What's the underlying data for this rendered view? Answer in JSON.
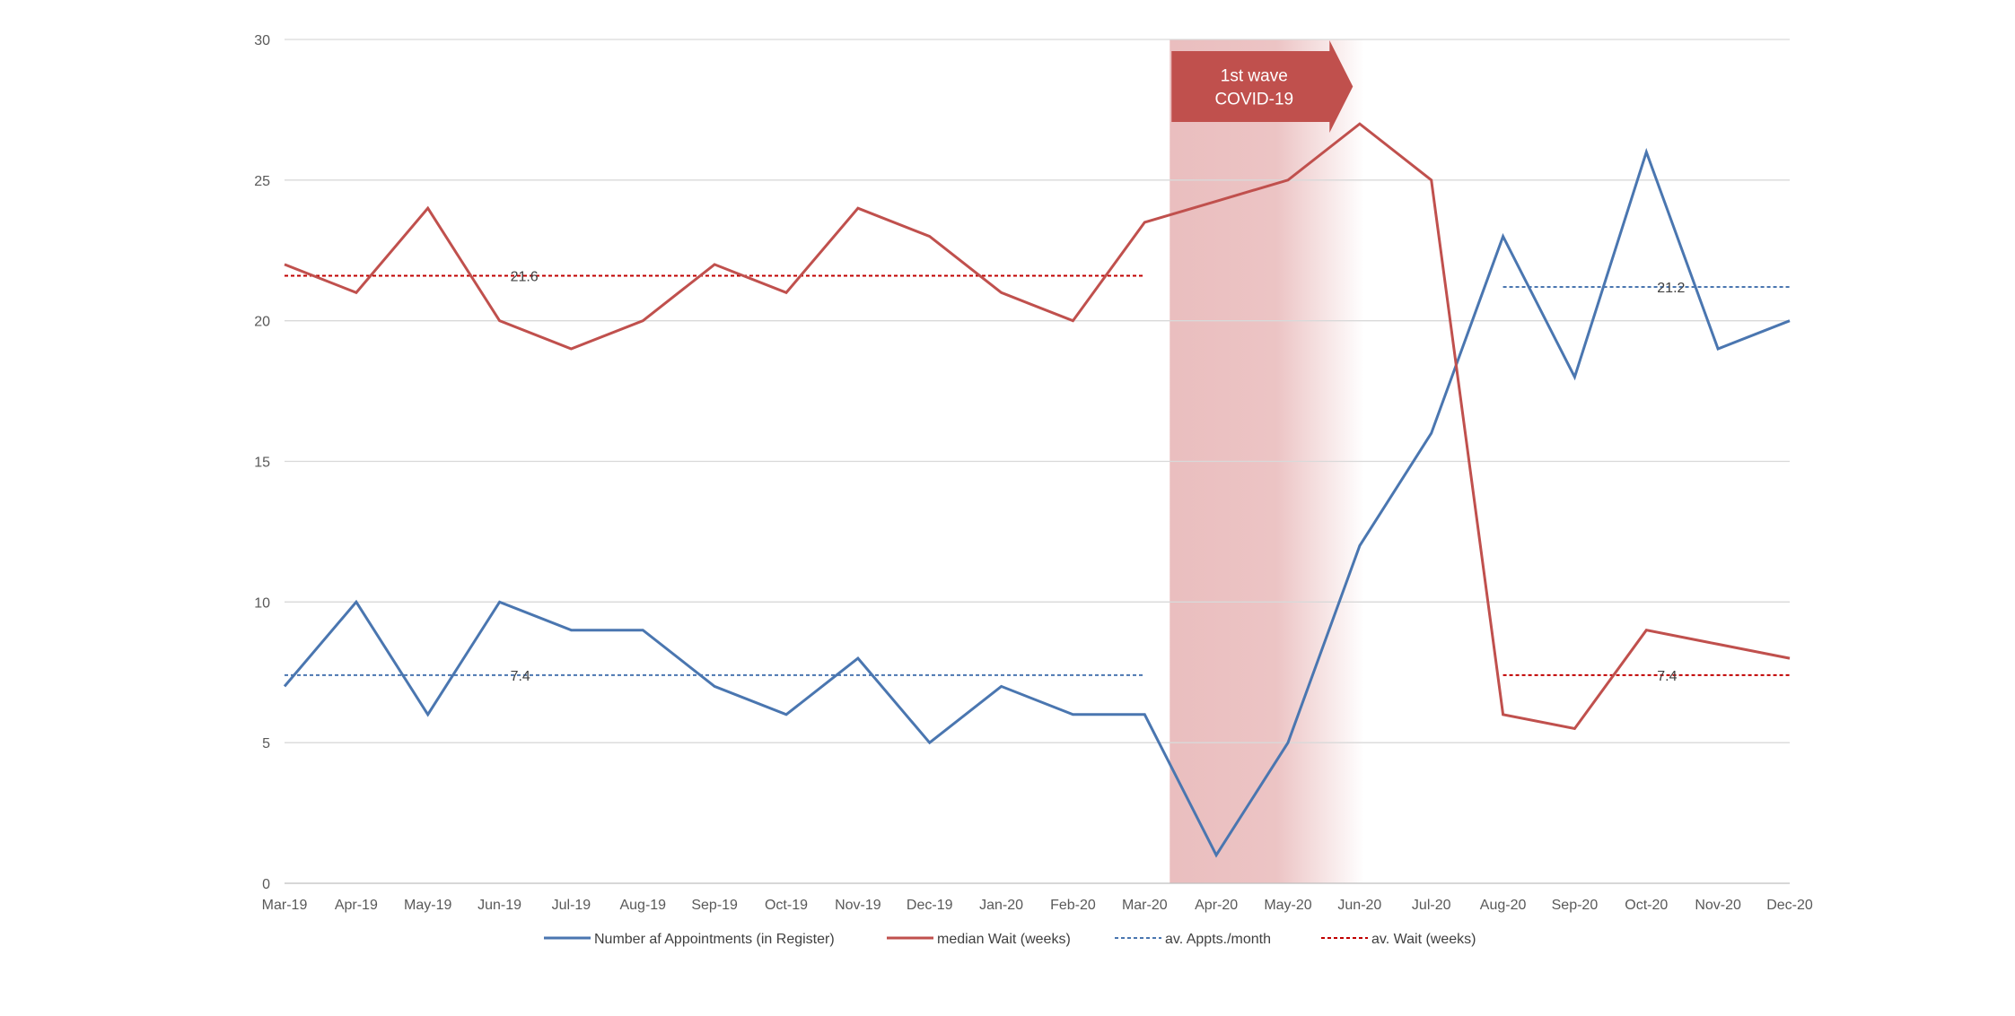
{
  "chart_data": {
    "type": "line",
    "categories": [
      "Mar-19",
      "Apr-19",
      "May-19",
      "Jun-19",
      "Jul-19",
      "Aug-19",
      "Sep-19",
      "Oct-19",
      "Nov-19",
      "Dec-19",
      "Jan-20",
      "Feb-20",
      "Mar-20",
      "Apr-20",
      "May-20",
      "Jun-20",
      "Jul-20",
      "Aug-20",
      "Sep-20",
      "Oct-20",
      "Nov-20",
      "Dec-20"
    ],
    "ylim": [
      0,
      30
    ],
    "yticks": [
      0,
      5,
      10,
      15,
      20,
      25,
      30
    ],
    "grid": true,
    "legend_position": "bottom",
    "series": [
      {
        "name": "Number af Appointments (in Register)",
        "color": "#4a76b0",
        "style": "solid",
        "values": [
          7,
          10,
          6,
          10,
          9,
          9,
          7,
          6,
          8,
          5,
          7,
          6,
          6,
          1,
          5,
          12,
          16,
          23,
          18,
          26,
          19,
          20
        ]
      },
      {
        "name": "median Wait (weeks)",
        "color": "#c0504d",
        "style": "solid",
        "values": [
          22,
          21,
          24,
          20,
          19,
          20,
          22,
          21,
          24,
          23,
          21,
          20,
          23.5,
          24.25,
          25,
          27,
          25,
          6,
          5.5,
          9,
          8.5,
          8
        ]
      },
      {
        "name": "av. Appts./month",
        "color": "#4a76b0",
        "style": "dashed",
        "segments": [
          {
            "from": "Mar-19",
            "to": "Mar-20",
            "value": 7.4,
            "label": "7.4",
            "label_at": "Jun-19"
          },
          {
            "from": "Aug-20",
            "to": "Dec-20",
            "value": 21.2,
            "label": "21.2",
            "label_at": "Oct-20"
          }
        ]
      },
      {
        "name": "av. Wait (weeks)",
        "color": "#c00000",
        "style": "dashed",
        "segments": [
          {
            "from": "Mar-19",
            "to": "Mar-20",
            "value": 21.6,
            "label": "21.6",
            "label_at": "Jun-19"
          },
          {
            "from": "Aug-20",
            "to": "Dec-20",
            "value": 7.4,
            "label": "7.4",
            "label_at": "Oct-20"
          }
        ]
      }
    ],
    "annotations": [
      {
        "type": "shaded-band",
        "from": "Mar-20",
        "to": "Jun-20",
        "color": "#d9898a",
        "label_lines": [
          "1st wave",
          "COVID-19"
        ],
        "arrow_color": "#c0504d"
      }
    ]
  }
}
